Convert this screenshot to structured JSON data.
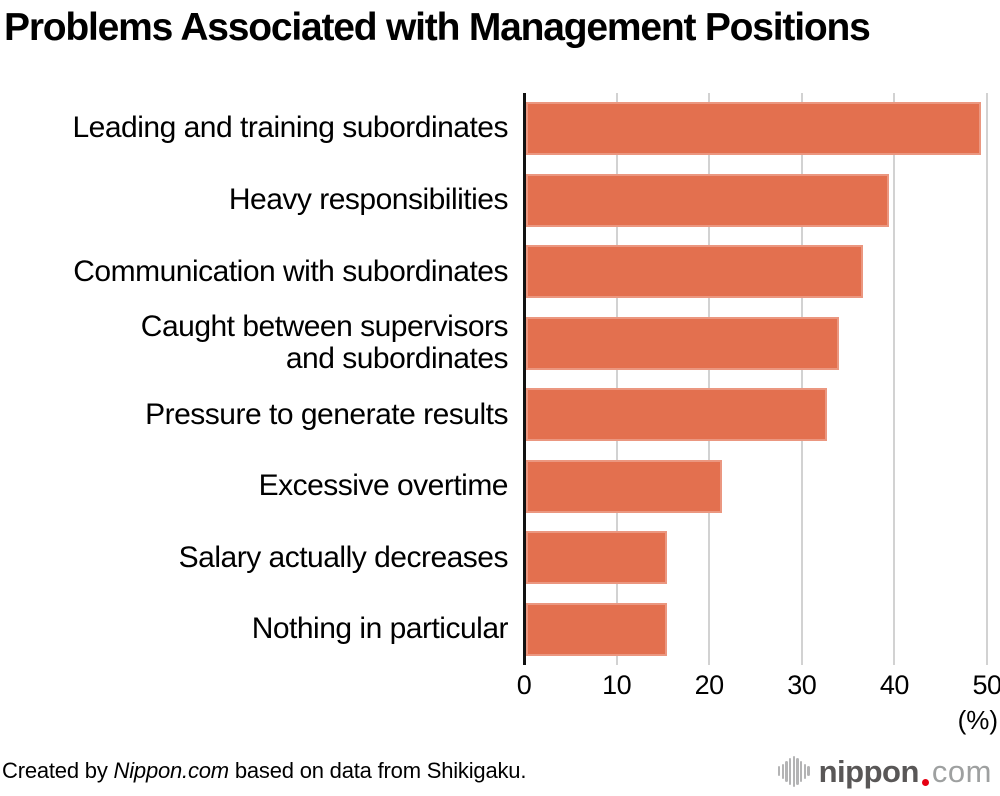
{
  "title": "Problems Associated with Management Positions",
  "chart_data": {
    "type": "bar",
    "orientation": "horizontal",
    "title": "Problems Associated with Management Positions",
    "categories": [
      "Leading and training subordinates",
      "Heavy responsibilities",
      "Communication with subordinates",
      "Caught between supervisors\nand subordinates",
      "Pressure to generate results",
      "Excessive overtime",
      "Salary actually decreases",
      "Nothing in particular"
    ],
    "values": [
      49.4,
      39.4,
      36.6,
      33.9,
      32.6,
      21.3,
      15.3,
      15.3
    ],
    "xlabel": "(%)",
    "xlim": [
      0,
      50
    ],
    "xticks": [
      0,
      10,
      20,
      30,
      40,
      50
    ],
    "grid": true,
    "legend": false,
    "colors": {
      "bar": "#E3704F",
      "grid": "#D2D2D2",
      "axis": "#111111"
    }
  },
  "axis": {
    "unit_label": "(%)"
  },
  "footer": {
    "credit_prefix": "Created by ",
    "credit_source": "Nippon.com",
    "credit_suffix": " based on data from Shikigaku.",
    "logo": {
      "icon": "soundwave-bars-icon",
      "name": "nippon",
      "dot": ".",
      "tld": "com",
      "name_color": "#595757",
      "dot_color": "#E60012",
      "tld_color": "#9EA0A0"
    }
  }
}
